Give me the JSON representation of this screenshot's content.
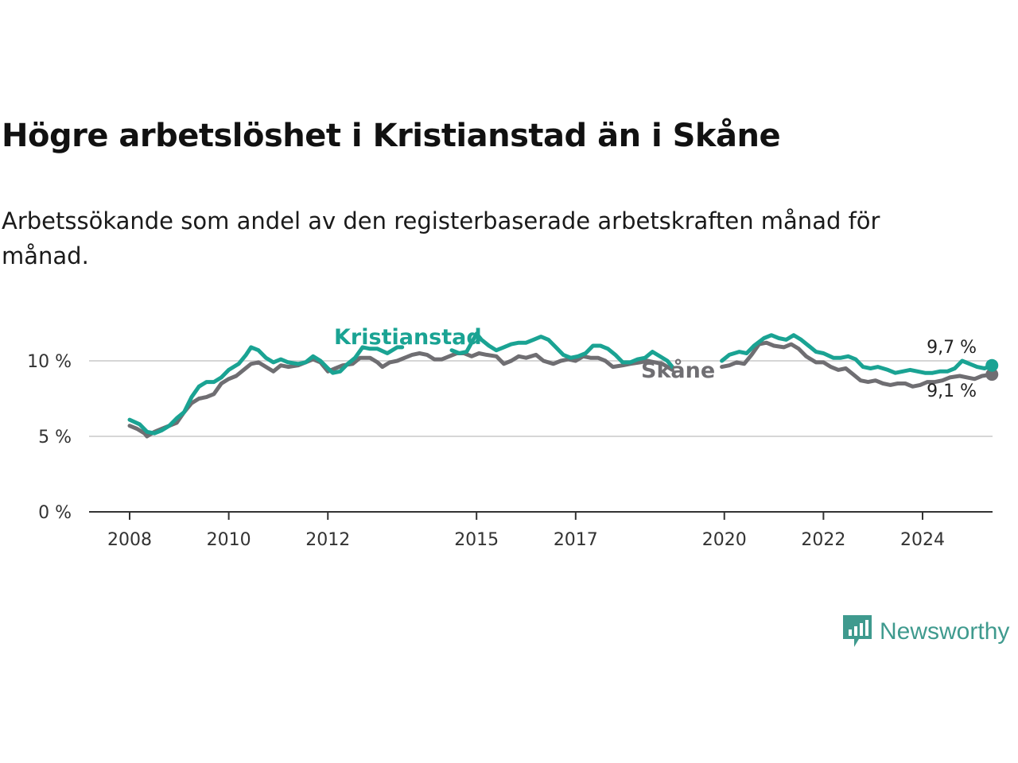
{
  "title": "Högre arbetslöshet i Kristianstad än i Skåne",
  "subtitle": "Arbetssökande som andel av den registerbaserade arbetskraften månad för månad.",
  "brand": {
    "name": "Newsworthy",
    "icon": "newsworthy-logo-icon",
    "color": "#3f9a8e"
  },
  "chart_data": {
    "type": "line",
    "x_unit": "year",
    "xlim": [
      2008,
      2025
    ],
    "ylim": [
      0,
      12
    ],
    "y_ticks": [
      0,
      5,
      10
    ],
    "y_tick_labels": [
      "0 %",
      "5 %",
      "10 %"
    ],
    "x_ticks": [
      2008,
      2010,
      2012,
      2015,
      2017,
      2020,
      2022,
      2024
    ],
    "x_tick_labels": [
      "2008",
      "2010",
      "2012",
      "2015",
      "2017",
      "2020",
      "2022",
      "2024"
    ],
    "grid": true,
    "colors": {
      "Kristianstad": "#1aa393",
      "Skåne": "#6f6e72"
    },
    "series": [
      {
        "name": "Kristianstad",
        "label": "Kristianstad",
        "end_label": "9,7 %",
        "end_value": 9.7,
        "points": [
          [
            2008.0,
            6.1
          ],
          [
            2008.2,
            5.8
          ],
          [
            2008.35,
            5.3
          ],
          [
            2008.5,
            5.2
          ],
          [
            2008.65,
            5.4
          ],
          [
            2008.8,
            5.7
          ],
          [
            2008.95,
            6.2
          ],
          [
            2009.1,
            6.6
          ],
          [
            2009.25,
            7.6
          ],
          [
            2009.4,
            8.3
          ],
          [
            2009.55,
            8.6
          ],
          [
            2009.7,
            8.6
          ],
          [
            2009.85,
            8.9
          ],
          [
            2010.0,
            9.4
          ],
          [
            2010.2,
            9.8
          ],
          [
            2010.35,
            10.4
          ],
          [
            2010.45,
            10.9
          ],
          [
            2010.6,
            10.7
          ],
          [
            2010.75,
            10.2
          ],
          [
            2010.9,
            9.9
          ],
          [
            2011.05,
            10.1
          ],
          [
            2011.2,
            9.9
          ],
          [
            2011.4,
            9.8
          ],
          [
            2011.55,
            9.9
          ],
          [
            2011.7,
            10.3
          ],
          [
            2011.85,
            10.0
          ],
          [
            2012.0,
            9.5
          ],
          [
            2012.1,
            9.2
          ],
          [
            2012.25,
            9.3
          ],
          [
            2012.4,
            9.8
          ],
          [
            2012.55,
            10.2
          ],
          [
            2012.7,
            10.9
          ],
          [
            2012.85,
            10.8
          ],
          [
            2013.0,
            10.8
          ],
          [
            2013.2,
            10.5
          ],
          [
            2013.4,
            10.9
          ],
          [
            2013.5,
            10.9
          ],
          [
            2014.5,
            10.7
          ],
          [
            2014.65,
            10.5
          ],
          [
            2014.8,
            10.6
          ],
          [
            2015.0,
            11.8
          ],
          [
            2015.1,
            11.4
          ],
          [
            2015.25,
            11.0
          ],
          [
            2015.4,
            10.7
          ],
          [
            2015.55,
            10.9
          ],
          [
            2015.7,
            11.1
          ],
          [
            2015.85,
            11.2
          ],
          [
            2016.0,
            11.2
          ],
          [
            2016.15,
            11.4
          ],
          [
            2016.3,
            11.6
          ],
          [
            2016.45,
            11.4
          ],
          [
            2016.6,
            10.9
          ],
          [
            2016.75,
            10.4
          ],
          [
            2016.9,
            10.2
          ],
          [
            2017.05,
            10.3
          ],
          [
            2017.2,
            10.5
          ],
          [
            2017.35,
            11.0
          ],
          [
            2017.5,
            11.0
          ],
          [
            2017.65,
            10.8
          ],
          [
            2017.8,
            10.4
          ],
          [
            2017.95,
            9.9
          ],
          [
            2018.1,
            9.9
          ],
          [
            2018.25,
            10.1
          ],
          [
            2018.4,
            10.2
          ],
          [
            2018.55,
            10.6
          ],
          [
            2018.7,
            10.3
          ],
          [
            2018.85,
            10.0
          ],
          [
            2018.95,
            9.6
          ],
          [
            2019.95,
            10.0
          ],
          [
            2020.1,
            10.4
          ],
          [
            2020.3,
            10.6
          ],
          [
            2020.45,
            10.5
          ],
          [
            2020.6,
            11.0
          ],
          [
            2020.8,
            11.5
          ],
          [
            2020.95,
            11.7
          ],
          [
            2021.1,
            11.5
          ],
          [
            2021.25,
            11.4
          ],
          [
            2021.4,
            11.7
          ],
          [
            2021.55,
            11.4
          ],
          [
            2021.7,
            11.0
          ],
          [
            2021.85,
            10.6
          ],
          [
            2022.0,
            10.5
          ],
          [
            2022.2,
            10.2
          ],
          [
            2022.35,
            10.2
          ],
          [
            2022.5,
            10.3
          ],
          [
            2022.65,
            10.1
          ],
          [
            2022.8,
            9.6
          ],
          [
            2022.95,
            9.5
          ],
          [
            2023.1,
            9.6
          ],
          [
            2023.3,
            9.4
          ],
          [
            2023.45,
            9.2
          ],
          [
            2023.6,
            9.3
          ],
          [
            2023.75,
            9.4
          ],
          [
            2023.9,
            9.3
          ],
          [
            2024.05,
            9.2
          ],
          [
            2024.2,
            9.2
          ],
          [
            2024.35,
            9.3
          ],
          [
            2024.5,
            9.3
          ],
          [
            2024.65,
            9.5
          ],
          [
            2024.8,
            10.0
          ],
          [
            2024.95,
            9.8
          ],
          [
            2025.1,
            9.6
          ],
          [
            2025.25,
            9.5
          ],
          [
            2025.4,
            9.7
          ]
        ]
      },
      {
        "name": "Skåne",
        "label": "Skåne",
        "end_label": "9,1 %",
        "end_value": 9.1,
        "points": [
          [
            2008.0,
            5.7
          ],
          [
            2008.15,
            5.5
          ],
          [
            2008.3,
            5.2
          ],
          [
            2008.35,
            5.0
          ],
          [
            2008.5,
            5.3
          ],
          [
            2008.65,
            5.5
          ],
          [
            2008.8,
            5.7
          ],
          [
            2008.95,
            5.9
          ],
          [
            2009.1,
            6.6
          ],
          [
            2009.25,
            7.2
          ],
          [
            2009.4,
            7.5
          ],
          [
            2009.55,
            7.6
          ],
          [
            2009.7,
            7.8
          ],
          [
            2009.85,
            8.5
          ],
          [
            2010.0,
            8.8
          ],
          [
            2010.15,
            9.0
          ],
          [
            2010.3,
            9.4
          ],
          [
            2010.45,
            9.8
          ],
          [
            2010.6,
            9.9
          ],
          [
            2010.75,
            9.6
          ],
          [
            2010.9,
            9.3
          ],
          [
            2011.05,
            9.7
          ],
          [
            2011.2,
            9.6
          ],
          [
            2011.4,
            9.7
          ],
          [
            2011.55,
            9.9
          ],
          [
            2011.7,
            10.1
          ],
          [
            2011.85,
            9.9
          ],
          [
            2012.0,
            9.3
          ],
          [
            2012.15,
            9.5
          ],
          [
            2012.3,
            9.7
          ],
          [
            2012.5,
            9.8
          ],
          [
            2012.65,
            10.2
          ],
          [
            2012.85,
            10.2
          ],
          [
            2013.0,
            9.9
          ],
          [
            2013.1,
            9.6
          ],
          [
            2013.25,
            9.9
          ],
          [
            2013.4,
            10.0
          ],
          [
            2013.55,
            10.2
          ],
          [
            2013.7,
            10.4
          ],
          [
            2013.85,
            10.5
          ],
          [
            2014.0,
            10.4
          ],
          [
            2014.15,
            10.1
          ],
          [
            2014.3,
            10.1
          ],
          [
            2014.45,
            10.3
          ],
          [
            2014.6,
            10.5
          ],
          [
            2014.75,
            10.5
          ],
          [
            2014.9,
            10.3
          ],
          [
            2015.05,
            10.5
          ],
          [
            2015.2,
            10.4
          ],
          [
            2015.4,
            10.3
          ],
          [
            2015.55,
            9.8
          ],
          [
            2015.7,
            10.0
          ],
          [
            2015.85,
            10.3
          ],
          [
            2016.0,
            10.2
          ],
          [
            2016.2,
            10.4
          ],
          [
            2016.35,
            10.0
          ],
          [
            2016.55,
            9.8
          ],
          [
            2016.7,
            10.0
          ],
          [
            2016.85,
            10.1
          ],
          [
            2017.0,
            10.0
          ],
          [
            2017.15,
            10.3
          ],
          [
            2017.3,
            10.2
          ],
          [
            2017.45,
            10.2
          ],
          [
            2017.6,
            10.0
          ],
          [
            2017.75,
            9.6
          ],
          [
            2017.95,
            9.7
          ],
          [
            2018.1,
            9.8
          ],
          [
            2018.3,
            9.9
          ],
          [
            2018.45,
            10.0
          ],
          [
            2018.6,
            9.9
          ],
          [
            2018.75,
            9.8
          ],
          [
            2018.95,
            9.4
          ],
          [
            2019.95,
            9.6
          ],
          [
            2020.1,
            9.7
          ],
          [
            2020.25,
            9.9
          ],
          [
            2020.4,
            9.8
          ],
          [
            2020.55,
            10.4
          ],
          [
            2020.7,
            11.1
          ],
          [
            2020.85,
            11.2
          ],
          [
            2021.0,
            11.0
          ],
          [
            2021.2,
            10.9
          ],
          [
            2021.35,
            11.1
          ],
          [
            2021.5,
            10.8
          ],
          [
            2021.65,
            10.3
          ],
          [
            2021.85,
            9.9
          ],
          [
            2022.0,
            9.9
          ],
          [
            2022.15,
            9.6
          ],
          [
            2022.3,
            9.4
          ],
          [
            2022.45,
            9.5
          ],
          [
            2022.6,
            9.1
          ],
          [
            2022.75,
            8.7
          ],
          [
            2022.9,
            8.6
          ],
          [
            2023.05,
            8.7
          ],
          [
            2023.2,
            8.5
          ],
          [
            2023.35,
            8.4
          ],
          [
            2023.5,
            8.5
          ],
          [
            2023.65,
            8.5
          ],
          [
            2023.8,
            8.3
          ],
          [
            2023.95,
            8.4
          ],
          [
            2024.1,
            8.6
          ],
          [
            2024.25,
            8.6
          ],
          [
            2024.4,
            8.7
          ],
          [
            2024.55,
            8.9
          ],
          [
            2024.75,
            9.0
          ],
          [
            2024.9,
            8.9
          ],
          [
            2025.05,
            8.8
          ],
          [
            2025.2,
            9.0
          ],
          [
            2025.4,
            9.1
          ]
        ]
      }
    ]
  }
}
